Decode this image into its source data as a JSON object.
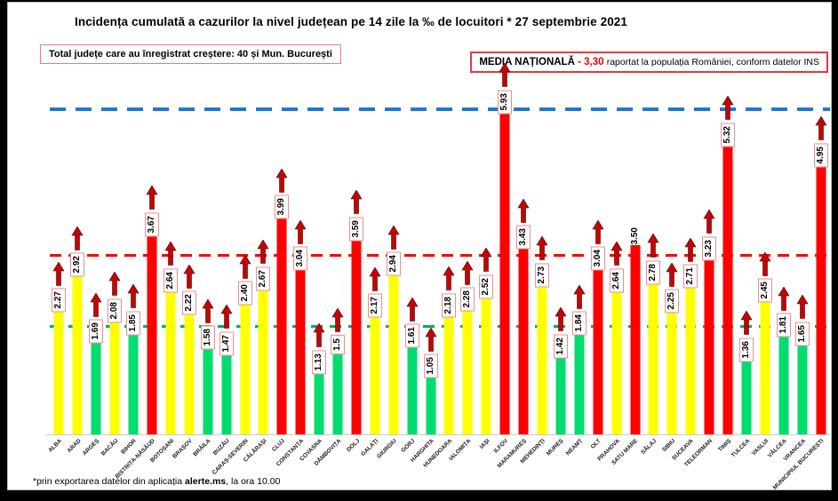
{
  "header": {
    "title": "Incidența cumulată a cazurilor la nivel județean pe 14 zile la ‰ de locuitori * 27 septembrie 2021",
    "total_box": "Total județe care au înregistrat creștere:  40 și Mun. București",
    "media_label": "MEDIA NAȚIONALĂ",
    "media_value": " - 3,30 ",
    "media_suffix": "raportat la populația României, conform datelor INS"
  },
  "footnote": {
    "prefix": "*prin exportarea datelor din aplicația ",
    "bold": "alerte.ms",
    "suffix": ", la ora 10.00"
  },
  "chart_data": {
    "type": "bar",
    "title": "Incidența cumulată a cazurilor la nivel județean pe 14 zile la ‰ de locuitori * 27 septembrie 2021",
    "ylim": [
      0,
      6.5
    ],
    "ytick_step": 0.25,
    "grid": false,
    "legend_position": "none",
    "palette": {
      "green": "#00dc6e",
      "yellow": "#ffff00",
      "red": "#fe0000"
    },
    "arrow_color": "#c00606",
    "reference_lines": [
      {
        "name": "upper-threshold",
        "value": 6.0,
        "color": "#1e78d2",
        "thickness": 4,
        "dash": 18,
        "gap": 11
      },
      {
        "name": "national-average",
        "value": 3.3,
        "color": "#ff0000",
        "thickness": 3,
        "dash": 13,
        "gap": 8
      },
      {
        "name": "lower-threshold",
        "value": 2.0,
        "color": "#00b050",
        "thickness": 3,
        "dash": 13,
        "gap": 8
      }
    ],
    "bars": [
      {
        "name": "ALBA",
        "value": 2.27,
        "label": "2.27",
        "color": "yellow",
        "arrow": true
      },
      {
        "name": "ARAD",
        "value": 2.92,
        "label": "2.92",
        "color": "yellow",
        "arrow": true
      },
      {
        "name": "ARGEȘ",
        "value": 1.69,
        "label": "1.69",
        "color": "green",
        "arrow": true
      },
      {
        "name": "BACĂU",
        "value": 2.08,
        "label": "2.08",
        "color": "yellow",
        "arrow": true
      },
      {
        "name": "BIHOR",
        "value": 1.85,
        "label": "1.85",
        "color": "green",
        "arrow": true
      },
      {
        "name": "BISTRIȚA-NĂSĂUD",
        "value": 3.67,
        "label": "3.67",
        "color": "red",
        "arrow": true
      },
      {
        "name": "BOTOȘANI",
        "value": 2.64,
        "label": "2.64",
        "color": "yellow",
        "arrow": true
      },
      {
        "name": "BRAȘOV",
        "value": 2.22,
        "label": "2.22",
        "color": "yellow",
        "arrow": true
      },
      {
        "name": "BRĂILA",
        "value": 1.58,
        "label": "1.58",
        "color": "green",
        "arrow": true
      },
      {
        "name": "BUZĂU",
        "value": 1.47,
        "label": "1.47",
        "color": "green",
        "arrow": true
      },
      {
        "name": "CARAȘ-SEVERIN",
        "value": 2.4,
        "label": "2.40",
        "color": "yellow",
        "arrow": true
      },
      {
        "name": "CĂLĂRAȘI",
        "value": 2.67,
        "label": "2.67",
        "color": "yellow",
        "arrow": true
      },
      {
        "name": "CLUJ",
        "value": 3.99,
        "label": "3.99",
        "color": "red",
        "arrow": true
      },
      {
        "name": "CONSTANȚA",
        "value": 3.04,
        "label": "3.04",
        "color": "red",
        "arrow": true
      },
      {
        "name": "COVASNA",
        "value": 1.13,
        "label": "1.13",
        "color": "green",
        "arrow": true
      },
      {
        "name": "DÂMBOVIȚA",
        "value": 1.5,
        "label": "1.5",
        "color": "green",
        "arrow": true
      },
      {
        "name": "DOLJ",
        "value": 3.59,
        "label": "3.59",
        "color": "red",
        "arrow": true
      },
      {
        "name": "GALAȚI",
        "value": 2.17,
        "label": "2.17",
        "color": "yellow",
        "arrow": true
      },
      {
        "name": "GIURGIU",
        "value": 2.94,
        "label": "2.94",
        "color": "yellow",
        "arrow": true
      },
      {
        "name": "GORJ",
        "value": 1.61,
        "label": "1.61",
        "color": "green",
        "arrow": true
      },
      {
        "name": "HARGHITA",
        "value": 1.05,
        "label": "1.05",
        "color": "green",
        "arrow": true
      },
      {
        "name": "HUNEDOARA",
        "value": 2.18,
        "label": "2.18",
        "color": "yellow",
        "arrow": true
      },
      {
        "name": "IALOMIȚA",
        "value": 2.28,
        "label": "2.28",
        "color": "yellow",
        "arrow": true
      },
      {
        "name": "IAȘI",
        "value": 2.52,
        "label": "2.52",
        "color": "yellow",
        "arrow": true
      },
      {
        "name": "ILFOV",
        "value": 5.93,
        "label": "5.93",
        "color": "red",
        "arrow": true
      },
      {
        "name": "MARAMUREȘ",
        "value": 3.43,
        "label": "3.43",
        "color": "red",
        "arrow": true
      },
      {
        "name": "MEHEDINȚI",
        "value": 2.73,
        "label": "2.73",
        "color": "yellow",
        "arrow": true
      },
      {
        "name": "MUREȘ",
        "value": 1.42,
        "label": "1.42",
        "color": "green",
        "arrow": true
      },
      {
        "name": "NEAMȚ",
        "value": 1.84,
        "label": "1.84",
        "color": "green",
        "arrow": true
      },
      {
        "name": "OLT",
        "value": 3.04,
        "label": "3.04",
        "color": "red",
        "arrow": true
      },
      {
        "name": "PRAHOVA",
        "value": 2.64,
        "label": "2.64",
        "color": "yellow",
        "arrow": true
      },
      {
        "name": "SATU MARE",
        "value": 3.5,
        "label": "3.50",
        "color": "red",
        "arrow": false
      },
      {
        "name": "SĂLAJ",
        "value": 2.78,
        "label": "2.78",
        "color": "yellow",
        "arrow": true
      },
      {
        "name": "SIBIU",
        "value": 2.25,
        "label": "2.25",
        "color": "yellow",
        "arrow": true
      },
      {
        "name": "SUCEAVA",
        "value": 2.71,
        "label": "2.71",
        "color": "yellow",
        "arrow": true
      },
      {
        "name": "TELEORMAN",
        "value": 3.23,
        "label": "3.23",
        "color": "red",
        "arrow": true
      },
      {
        "name": "TIMIȘ",
        "value": 5.32,
        "label": "5.32",
        "color": "red",
        "arrow": true
      },
      {
        "name": "TULCEA",
        "value": 1.36,
        "label": "1.36",
        "color": "green",
        "arrow": true
      },
      {
        "name": "VASLUI",
        "value": 2.45,
        "label": "2.45",
        "color": "yellow",
        "arrow": true
      },
      {
        "name": "VÂLCEA",
        "value": 1.81,
        "label": "1.81",
        "color": "green",
        "arrow": true
      },
      {
        "name": "VRANCEA",
        "value": 1.65,
        "label": "1.65",
        "color": "green",
        "arrow": true
      },
      {
        "name": "MUNICIPIUL BUCUREȘTI",
        "value": 4.95,
        "label": "4.95",
        "color": "red",
        "arrow": true
      }
    ]
  }
}
